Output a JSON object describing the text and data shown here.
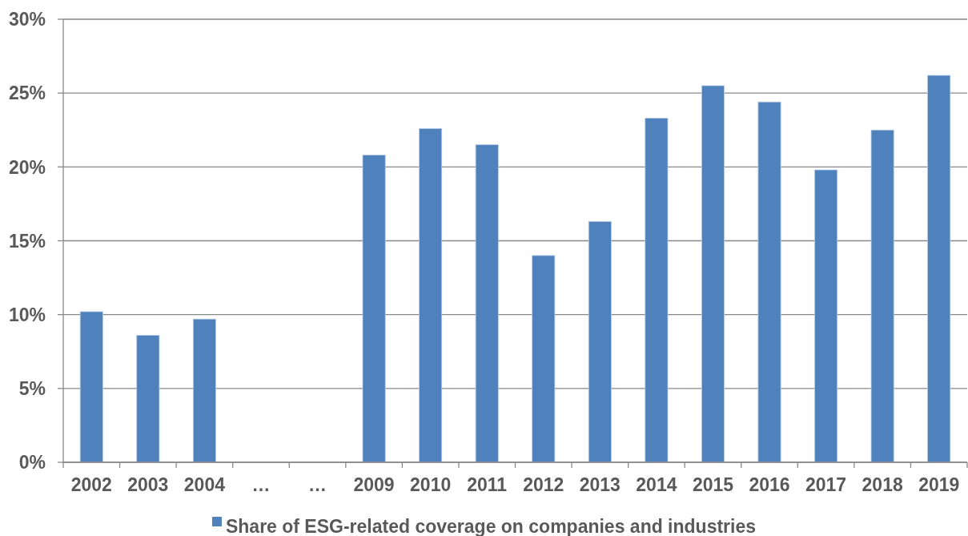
{
  "chart_data": {
    "type": "bar",
    "categories": [
      "2002",
      "2003",
      "2004",
      "…",
      "…",
      "2009",
      "2010",
      "2011",
      "2012",
      "2013",
      "2014",
      "2015",
      "2016",
      "2017",
      "2018",
      "2019"
    ],
    "series": [
      {
        "name": "Share of ESG-related coverage on companies and industries",
        "color": "#4f81bd",
        "values": [
          10.2,
          8.6,
          9.7,
          null,
          null,
          20.8,
          22.6,
          21.5,
          14.0,
          16.3,
          23.3,
          25.5,
          24.4,
          19.8,
          22.5,
          26.2
        ]
      }
    ],
    "ylim": [
      0,
      30
    ],
    "yticks": [
      {
        "value": 0,
        "label": "0%"
      },
      {
        "value": 5,
        "label": "5%"
      },
      {
        "value": 10,
        "label": "10%"
      },
      {
        "value": 15,
        "label": "15%"
      },
      {
        "value": 20,
        "label": "20%"
      },
      {
        "value": 25,
        "label": "25%"
      },
      {
        "value": 30,
        "label": "30%"
      }
    ],
    "grid": "y",
    "legend": "bottom"
  }
}
